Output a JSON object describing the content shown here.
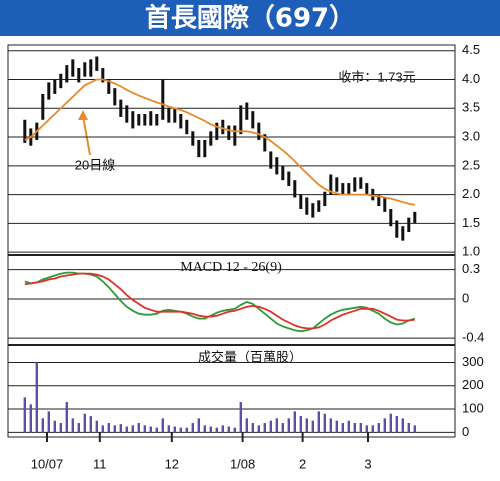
{
  "title": "首長國際（697）",
  "chart_data": [
    {
      "type": "ohlc",
      "ylim": [
        0.95,
        4.6
      ],
      "yticks": [
        {
          "value": 1.0,
          "label": "1.0"
        },
        1.5,
        {
          "value": 2.0,
          "label": "2.0"
        },
        2.5,
        {
          "value": 3.0,
          "label": "3.0"
        },
        3.5,
        {
          "value": 4.0,
          "label": "4.0"
        },
        4.5
      ],
      "grid": true,
      "color": "#111111",
      "high": [
        3.3,
        3.15,
        3.25,
        3.75,
        3.95,
        4.0,
        4.1,
        4.25,
        4.35,
        4.2,
        4.3,
        4.35,
        4.4,
        4.2,
        4.0,
        3.85,
        3.65,
        3.55,
        3.45,
        3.4,
        3.4,
        3.45,
        3.4,
        4.0,
        3.5,
        3.5,
        3.4,
        3.3,
        3.1,
        2.95,
        2.95,
        3.1,
        3.25,
        3.3,
        3.2,
        3.2,
        3.55,
        3.6,
        3.45,
        3.25,
        3.05,
        2.75,
        2.65,
        2.5,
        2.4,
        2.25,
        2.0,
        1.95,
        1.85,
        1.9,
        2.05,
        2.35,
        2.3,
        2.2,
        2.2,
        2.3,
        2.3,
        2.2,
        2.1,
        2.0,
        1.95,
        1.75,
        1.55,
        1.45,
        1.6,
        1.7
      ],
      "low": [
        2.9,
        2.85,
        2.95,
        3.3,
        3.65,
        3.75,
        3.85,
        3.95,
        4.05,
        3.95,
        4.05,
        4.05,
        4.15,
        3.95,
        3.75,
        3.55,
        3.35,
        3.25,
        3.15,
        3.2,
        3.2,
        3.2,
        3.2,
        3.3,
        3.25,
        3.25,
        3.15,
        3.05,
        2.85,
        2.65,
        2.65,
        2.85,
        2.95,
        3.05,
        2.95,
        2.85,
        3.05,
        3.3,
        3.15,
        2.95,
        2.75,
        2.45,
        2.35,
        2.25,
        2.15,
        1.95,
        1.75,
        1.65,
        1.6,
        1.7,
        1.8,
        2.0,
        2.05,
        2.0,
        2.0,
        2.05,
        2.1,
        2.0,
        1.9,
        1.8,
        1.7,
        1.45,
        1.25,
        1.2,
        1.35,
        1.5
      ],
      "series": [
        {
          "name": "20日線",
          "color": "#e8892b",
          "values": [
            2.95,
            3.0,
            3.1,
            3.2,
            3.3,
            3.4,
            3.5,
            3.6,
            3.7,
            3.8,
            3.9,
            3.95,
            4.0,
            4.0,
            3.97,
            3.93,
            3.88,
            3.82,
            3.77,
            3.72,
            3.68,
            3.64,
            3.6,
            3.57,
            3.53,
            3.5,
            3.47,
            3.43,
            3.38,
            3.33,
            3.28,
            3.22,
            3.18,
            3.15,
            3.12,
            3.1,
            3.1,
            3.1,
            3.08,
            3.05,
            3.0,
            2.93,
            2.85,
            2.77,
            2.68,
            2.58,
            2.47,
            2.37,
            2.27,
            2.17,
            2.1,
            2.05,
            2.02,
            2.0,
            2.0,
            2.0,
            2.0,
            2.0,
            1.98,
            1.97,
            1.95,
            1.93,
            1.9,
            1.87,
            1.84,
            1.82
          ]
        }
      ],
      "annotations": [
        "收市：1.73元"
      ]
    },
    {
      "type": "line",
      "title": "MACD 12 - 26(9)",
      "ylim": [
        -0.47,
        0.45
      ],
      "yticks": [
        -0.4,
        0,
        0.3
      ],
      "grid": true,
      "series": [
        {
          "color": "#2e9b3a",
          "values": [
            0.18,
            0.16,
            0.17,
            0.2,
            0.22,
            0.24,
            0.26,
            0.27,
            0.27,
            0.26,
            0.26,
            0.25,
            0.23,
            0.18,
            0.12,
            0.05,
            -0.02,
            -0.08,
            -0.12,
            -0.15,
            -0.16,
            -0.16,
            -0.15,
            -0.12,
            -0.11,
            -0.12,
            -0.13,
            -0.15,
            -0.18,
            -0.2,
            -0.2,
            -0.17,
            -0.14,
            -0.12,
            -0.11,
            -0.1,
            -0.06,
            -0.03,
            -0.05,
            -0.1,
            -0.15,
            -0.2,
            -0.25,
            -0.28,
            -0.3,
            -0.32,
            -0.33,
            -0.32,
            -0.3,
            -0.25,
            -0.2,
            -0.16,
            -0.13,
            -0.11,
            -0.1,
            -0.09,
            -0.08,
            -0.09,
            -0.12,
            -0.15,
            -0.2,
            -0.24,
            -0.26,
            -0.25,
            -0.22,
            -0.2
          ]
        },
        {
          "color": "#e0302a",
          "values": [
            0.15,
            0.16,
            0.17,
            0.18,
            0.2,
            0.21,
            0.23,
            0.24,
            0.25,
            0.26,
            0.26,
            0.26,
            0.25,
            0.23,
            0.2,
            0.15,
            0.1,
            0.04,
            -0.01,
            -0.05,
            -0.09,
            -0.11,
            -0.13,
            -0.13,
            -0.13,
            -0.13,
            -0.13,
            -0.14,
            -0.15,
            -0.17,
            -0.18,
            -0.18,
            -0.17,
            -0.15,
            -0.13,
            -0.12,
            -0.1,
            -0.08,
            -0.07,
            -0.08,
            -0.1,
            -0.13,
            -0.17,
            -0.21,
            -0.24,
            -0.27,
            -0.29,
            -0.3,
            -0.3,
            -0.29,
            -0.26,
            -0.22,
            -0.19,
            -0.16,
            -0.14,
            -0.12,
            -0.1,
            -0.1,
            -0.1,
            -0.12,
            -0.15,
            -0.18,
            -0.21,
            -0.22,
            -0.22,
            -0.21
          ]
        }
      ]
    },
    {
      "type": "bar",
      "title": "成交量（百萬股）",
      "ylim": [
        -20,
        375
      ],
      "yticks": [
        0,
        100,
        200,
        300
      ],
      "grid": true,
      "color": "#5b4fa8",
      "values": [
        150,
        120,
        300,
        60,
        90,
        50,
        40,
        130,
        60,
        40,
        80,
        70,
        50,
        30,
        40,
        30,
        35,
        25,
        30,
        40,
        30,
        25,
        20,
        60,
        30,
        25,
        20,
        20,
        40,
        60,
        30,
        25,
        20,
        30,
        25,
        20,
        130,
        60,
        40,
        30,
        40,
        50,
        60,
        40,
        60,
        90,
        70,
        60,
        50,
        90,
        80,
        60,
        50,
        40,
        50,
        40,
        40,
        30,
        30,
        40,
        60,
        80,
        70,
        60,
        40,
        30
      ],
      "xlim": [
        -2.8,
        71.7
      ],
      "xticks": [
        {
          "value": 3.7,
          "label": "10/07"
        },
        {
          "value": 12.5,
          "label": "11"
        },
        {
          "value": 24.5,
          "label": "12"
        },
        {
          "value": 36.3,
          "label": "1/08"
        },
        {
          "value": 46.3,
          "label": "2"
        },
        {
          "value": 57.2,
          "label": "3"
        }
      ]
    }
  ]
}
